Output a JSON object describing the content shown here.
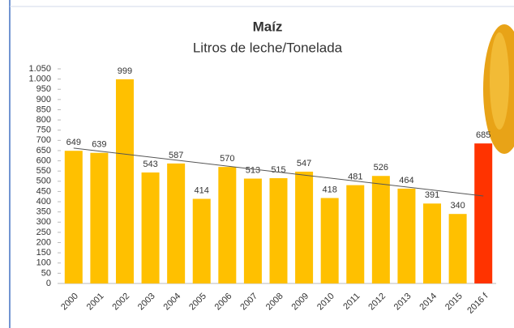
{
  "chart_data": {
    "type": "bar",
    "title": "Maíz",
    "subtitle": "Litros de leche/Tonelada",
    "categories": [
      "2000",
      "2001",
      "2002",
      "2003",
      "2004",
      "2005",
      "2006",
      "2007",
      "2008",
      "2009",
      "2010",
      "2011",
      "2012",
      "2013",
      "2014",
      "2015",
      "2016 f"
    ],
    "values": [
      649,
      639,
      999,
      543,
      587,
      414,
      570,
      513,
      515,
      547,
      418,
      481,
      526,
      464,
      391,
      340,
      685
    ],
    "colors": [
      "#ffc000",
      "#ffc000",
      "#ffc000",
      "#ffc000",
      "#ffc000",
      "#ffc000",
      "#ffc000",
      "#ffc000",
      "#ffc000",
      "#ffc000",
      "#ffc000",
      "#ffc000",
      "#ffc000",
      "#ffc000",
      "#ffc000",
      "#ffc000",
      "#ff3300"
    ],
    "trendline": {
      "start": 662,
      "end": 428
    },
    "ylim": [
      0,
      1050
    ],
    "yticks": [
      0,
      50,
      100,
      150,
      200,
      250,
      300,
      350,
      400,
      450,
      500,
      550,
      600,
      650,
      700,
      750,
      800,
      850,
      900,
      950,
      {
        "value": 1000,
        "label": "1.000"
      },
      {
        "value": 1050,
        "label": "1.050"
      }
    ],
    "grid": false
  }
}
